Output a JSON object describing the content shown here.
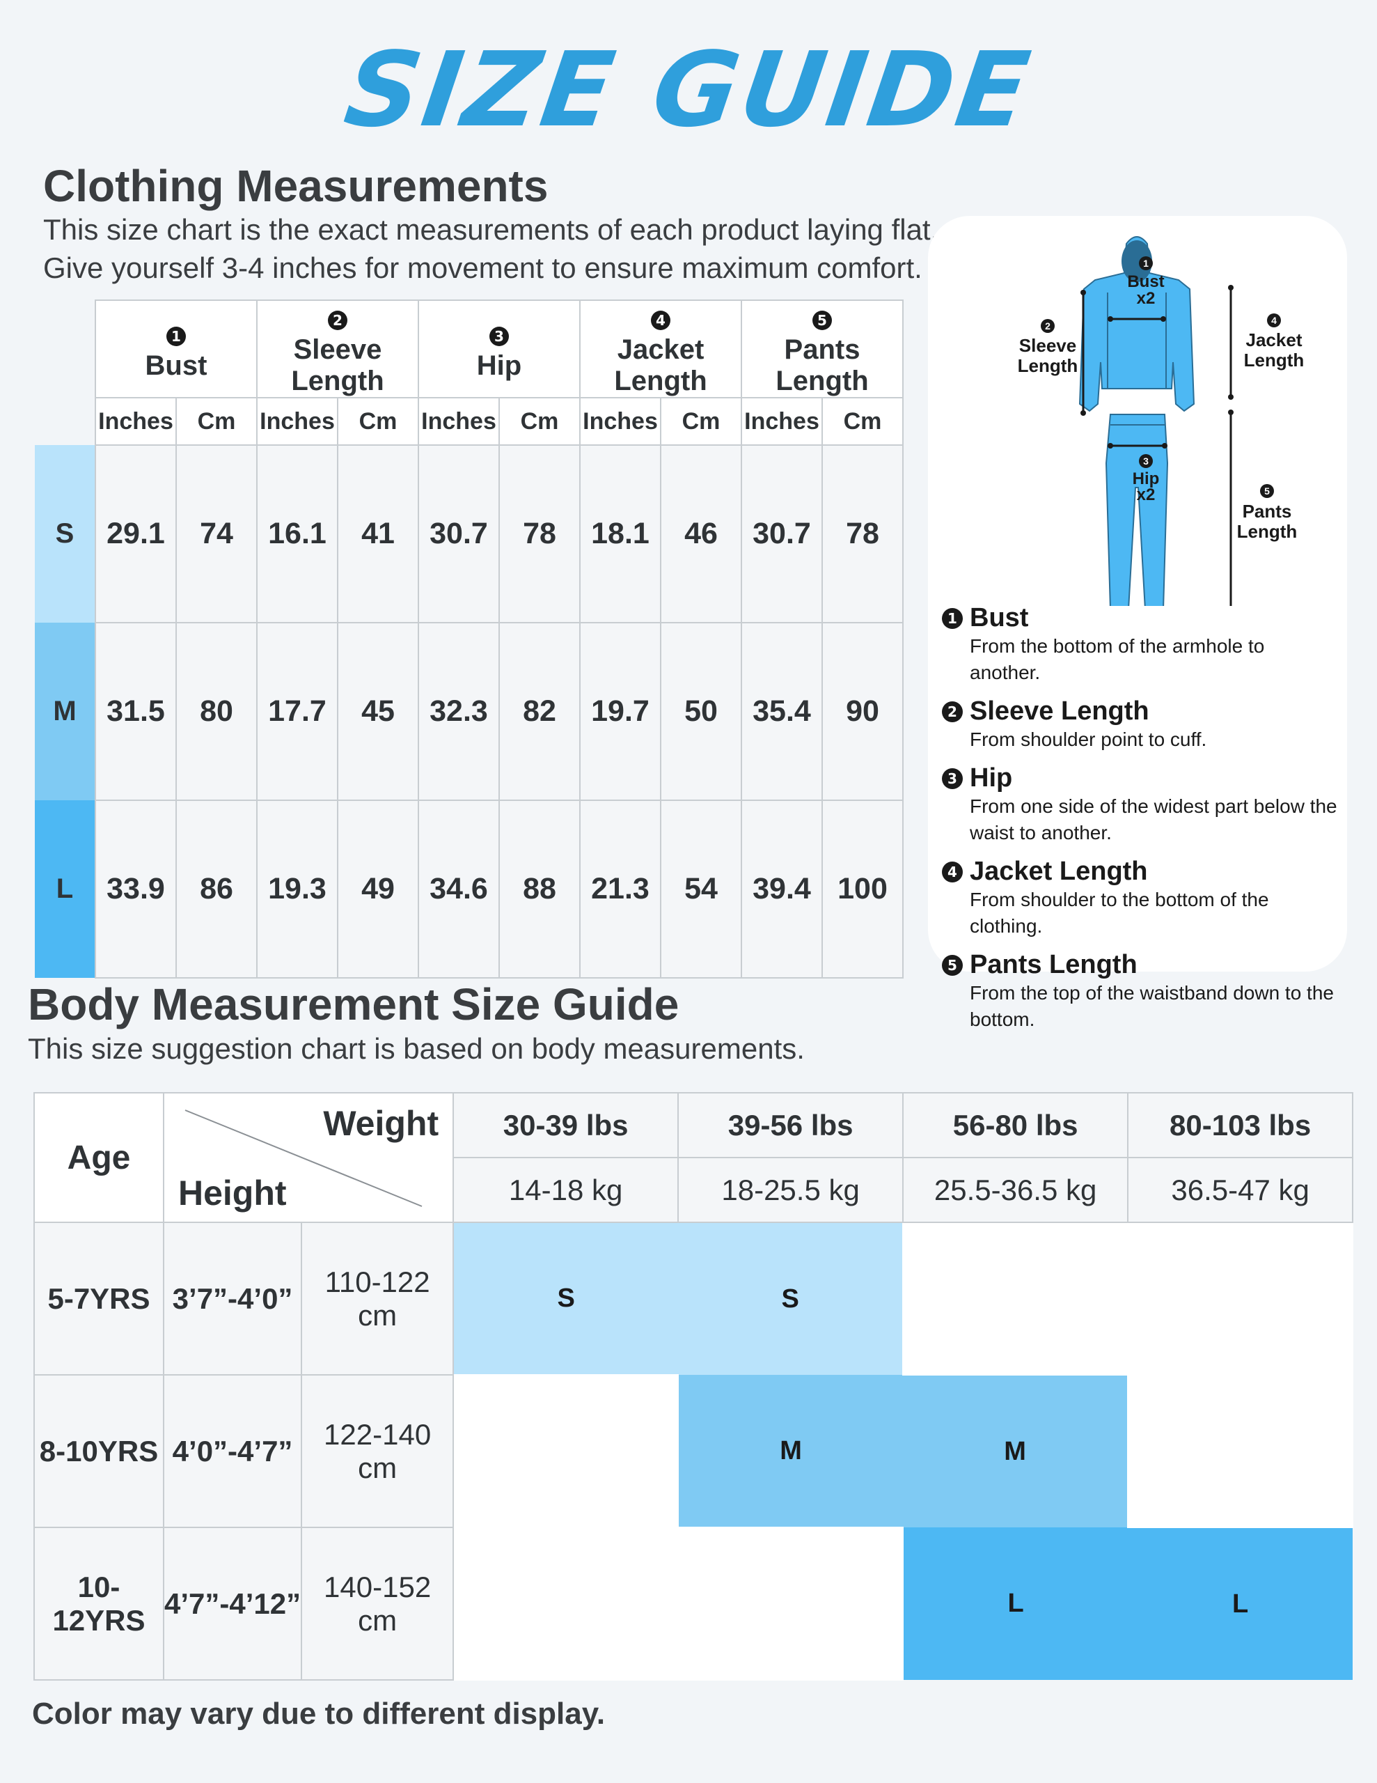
{
  "title": "SIZE GUIDE",
  "clothing": {
    "heading": "Clothing Measurements",
    "desc1": "This size chart is the exact measurements of each product laying flat.",
    "desc2": "Give yourself 3-4 inches for movement to ensure maximum comfort.",
    "groups": [
      {
        "num": "1",
        "label": "Bust"
      },
      {
        "num": "2",
        "label": "Sleeve Length"
      },
      {
        "num": "3",
        "label": "Hip"
      },
      {
        "num": "4",
        "label": "Jacket Length"
      },
      {
        "num": "5",
        "label": "Pants Length"
      }
    ],
    "unit_in": "Inches",
    "unit_cm": "Cm",
    "rows": [
      {
        "size": "S",
        "values": [
          "29.1",
          "74",
          "16.1",
          "41",
          "30.7",
          "78",
          "18.1",
          "46",
          "30.7",
          "78"
        ]
      },
      {
        "size": "M",
        "values": [
          "31.5",
          "80",
          "17.7",
          "45",
          "32.3",
          "82",
          "19.7",
          "50",
          "35.4",
          "90"
        ]
      },
      {
        "size": "L",
        "values": [
          "33.9",
          "86",
          "19.3",
          "49",
          "34.6",
          "88",
          "21.3",
          "54",
          "39.4",
          "100"
        ]
      }
    ]
  },
  "diagram": {
    "bust": "Bust",
    "x2": "x2",
    "sleeve": "Sleeve",
    "length": "Length",
    "jacket": "Jacket",
    "hip": "Hip",
    "pants": "Pants",
    "n1": "1",
    "n2": "2",
    "n3": "3",
    "n4": "4",
    "n5": "5"
  },
  "legend": [
    {
      "num": "1",
      "title": "Bust",
      "desc": "From the bottom of the armhole to another."
    },
    {
      "num": "2",
      "title": "Sleeve Length",
      "desc": "From shoulder point to cuff."
    },
    {
      "num": "3",
      "title": "Hip",
      "desc": "From one side of the widest part below the waist to another."
    },
    {
      "num": "4",
      "title": "Jacket Length",
      "desc": "From shoulder to the bottom of the clothing."
    },
    {
      "num": "5",
      "title": "Pants Length",
      "desc": "From the top of the waistband down to the bottom."
    }
  ],
  "body": {
    "heading": "Body Measurement Size Guide",
    "desc": "This size suggestion chart is based on body measurements.",
    "age": "Age",
    "weight": "Weight",
    "height": "Height",
    "weights_lbs": [
      "30-39 lbs",
      "39-56 lbs",
      "56-80 lbs",
      "80-103 lbs"
    ],
    "weights_kg": [
      "14-18 kg",
      "18-25.5 kg",
      "25.5-36.5 kg",
      "36.5-47 kg"
    ],
    "rows": [
      {
        "age": "5-7YRS",
        "ft": "3’7”-4’0”",
        "cm": "110-122 cm",
        "cells": [
          "S",
          "S",
          "",
          ""
        ]
      },
      {
        "age": "8-10YRS",
        "ft": "4’0”-4’7”",
        "cm": "122-140 cm",
        "cells": [
          "",
          "M",
          "M",
          ""
        ]
      },
      {
        "age": "10-12YRS",
        "ft": "4’7”-4’12”",
        "cm": "140-152 cm",
        "cells": [
          "",
          "",
          "L",
          "L"
        ]
      }
    ]
  },
  "footer": "Color may vary due to different display.",
  "colors": {
    "title": "#2f9fdc",
    "S": "#b9e3fb",
    "M": "#7fcaf3",
    "L": "#4db8f3",
    "garment": "#4db8f3"
  }
}
